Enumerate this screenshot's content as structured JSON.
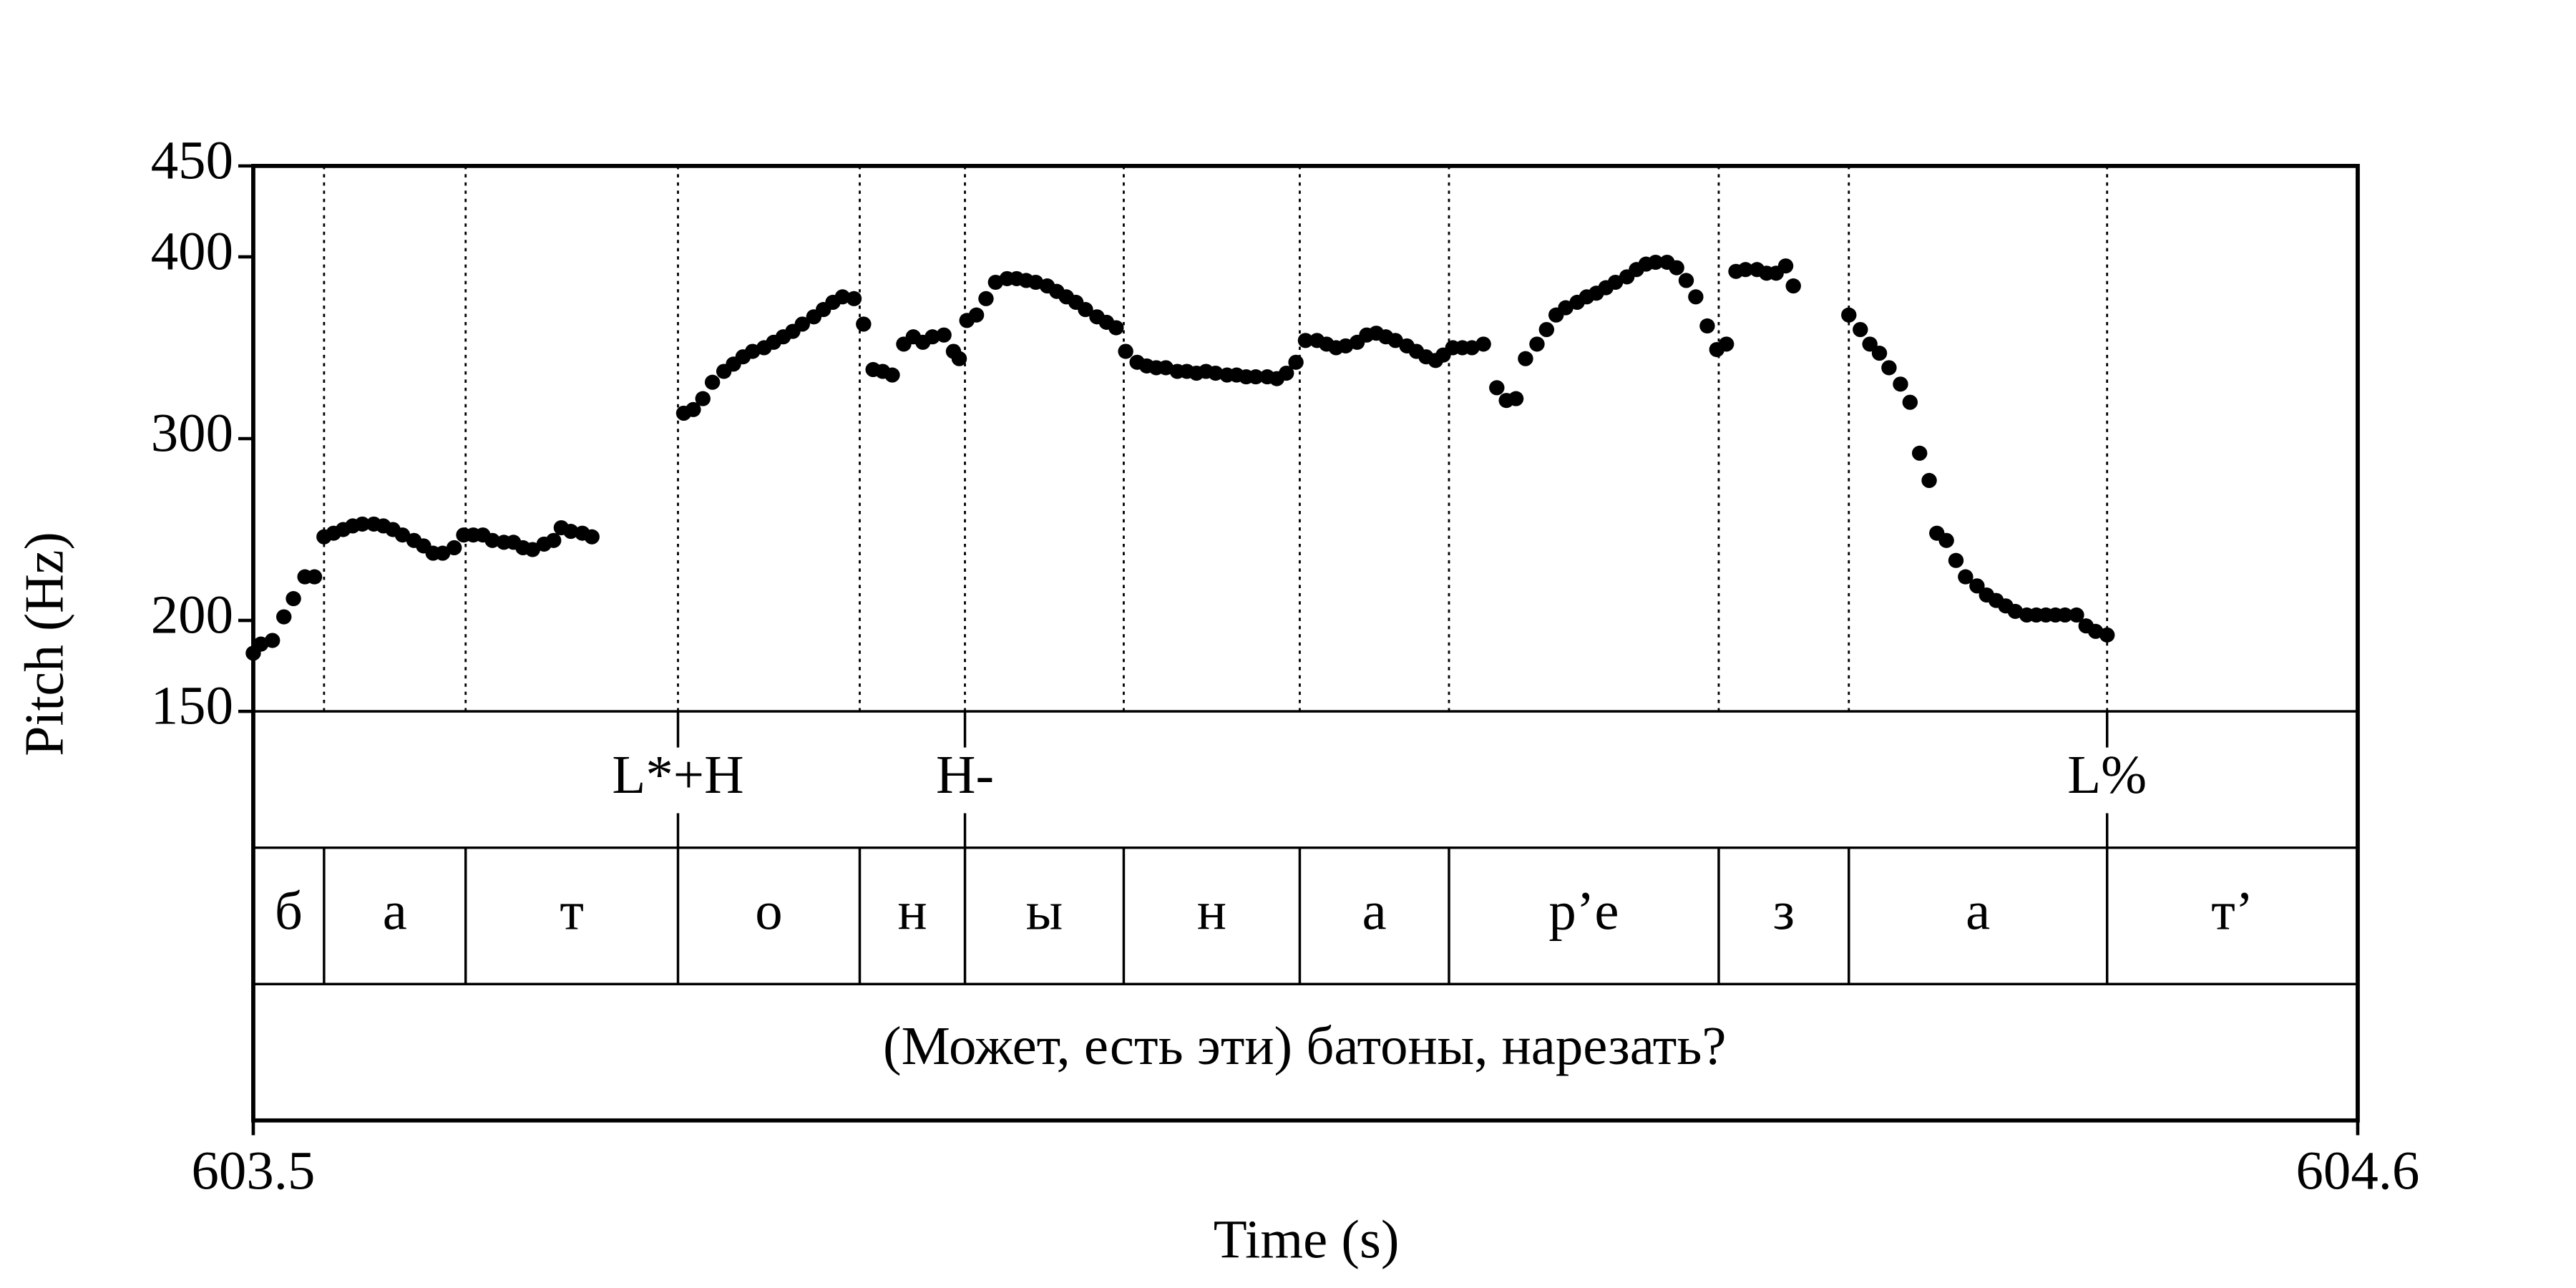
{
  "chart_data": {
    "type": "scatter",
    "ylabel": "Pitch (Hz)",
    "xlabel": "Time (s)",
    "xlim": [
      603.5,
      604.6
    ],
    "xticks": [
      603.5,
      604.6
    ],
    "ylim": [
      150,
      450
    ],
    "yticks": [
      150,
      200,
      300,
      400,
      450
    ],
    "color": "#000000",
    "x": [
      603.5,
      603.504,
      603.51,
      603.516,
      603.521,
      603.527,
      603.532,
      603.537,
      603.542,
      603.547,
      603.552,
      603.557,
      603.563,
      603.568,
      603.573,
      603.578,
      603.584,
      603.589,
      603.594,
      603.599,
      603.605,
      603.61,
      603.615,
      603.62,
      603.625,
      603.631,
      603.636,
      603.641,
      603.646,
      603.652,
      603.657,
      603.661,
      603.666,
      603.672,
      603.677,
      603.725,
      603.73,
      603.735,
      603.74,
      603.746,
      603.751,
      603.756,
      603.761,
      603.767,
      603.772,
      603.777,
      603.782,
      603.787,
      603.793,
      603.798,
      603.803,
      603.808,
      603.814,
      603.819,
      603.824,
      603.829,
      603.834,
      603.84,
      603.845,
      603.85,
      603.855,
      603.861,
      603.866,
      603.869,
      603.873,
      603.878,
      603.883,
      603.888,
      603.894,
      603.899,
      603.904,
      603.909,
      603.915,
      603.92,
      603.925,
      603.93,
      603.935,
      603.941,
      603.946,
      603.951,
      603.956,
      603.962,
      603.967,
      603.972,
      603.977,
      603.983,
      603.988,
      603.993,
      603.998,
      604.003,
      604.009,
      604.014,
      604.019,
      604.024,
      604.03,
      604.035,
      604.04,
      604.045,
      604.05,
      604.056,
      604.061,
      604.066,
      604.071,
      604.077,
      604.082,
      604.087,
      604.092,
      604.097,
      604.103,
      604.108,
      604.113,
      604.118,
      604.122,
      604.127,
      604.132,
      604.137,
      604.143,
      604.15,
      604.155,
      604.16,
      604.165,
      604.171,
      604.176,
      604.181,
      604.186,
      604.192,
      604.197,
      604.202,
      604.207,
      604.212,
      604.218,
      604.223,
      604.228,
      604.233,
      604.239,
      604.244,
      604.249,
      604.254,
      604.26,
      604.265,
      604.27,
      604.275,
      604.28,
      604.286,
      604.291,
      604.296,
      604.301,
      604.305,
      604.334,
      604.34,
      604.345,
      604.35,
      604.355,
      604.361,
      604.366,
      604.371,
      604.376,
      604.38,
      604.385,
      604.39,
      604.395,
      604.401,
      604.406,
      604.411,
      604.416,
      604.421,
      604.427,
      604.432,
      604.437,
      604.442,
      604.447,
      604.453,
      604.458,
      604.463,
      604.469
    ],
    "values": [
      182,
      187,
      189,
      202,
      212,
      224,
      224,
      246,
      248,
      250,
      252,
      253,
      253,
      252,
      250,
      247,
      244,
      241,
      237,
      237,
      240,
      247,
      247,
      247,
      244,
      243,
      243,
      240,
      239,
      242,
      244,
      251,
      249,
      248,
      246,
      314,
      316,
      322,
      331,
      337,
      341,
      345,
      348,
      350,
      353,
      356,
      359,
      363,
      367,
      371,
      375,
      378,
      377,
      363,
      338,
      337,
      335,
      352,
      356,
      353,
      356,
      357,
      348,
      344,
      365,
      368,
      377,
      386,
      388,
      388,
      387,
      386,
      384,
      381,
      378,
      375,
      371,
      367,
      364,
      361,
      348,
      342,
      340,
      339,
      339,
      337,
      337,
      336,
      337,
      336,
      335,
      335,
      334,
      334,
      334,
      333,
      336,
      342,
      354,
      354,
      352,
      350,
      351,
      353,
      357,
      358,
      356,
      354,
      351,
      348,
      345,
      343,
      346,
      350,
      350,
      350,
      352,
      328,
      321,
      322,
      344,
      352,
      360,
      368,
      372,
      375,
      378,
      380,
      383,
      386,
      389,
      393,
      396,
      397,
      397,
      394,
      387,
      378,
      362,
      349,
      352,
      392,
      393,
      393,
      391,
      391,
      395,
      384,
      368,
      360,
      352,
      347,
      339,
      330,
      320,
      292,
      277,
      248,
      244,
      233,
      224,
      219,
      214,
      211,
      208,
      205,
      203,
      203,
      203,
      203,
      203,
      203,
      197,
      194,
      192
    ],
    "tones": [
      {
        "time": 603.722,
        "label": "L*+H"
      },
      {
        "time": 603.872,
        "label": "H-"
      },
      {
        "time": 604.469,
        "label": "L%"
      }
    ],
    "boundaries": [
      603.537,
      603.611,
      603.722,
      603.817,
      603.872,
      603.955,
      604.047,
      604.125,
      604.266,
      604.334,
      604.469
    ],
    "phones": [
      "б",
      "а",
      "т",
      "о",
      "н",
      "ы",
      "н",
      "а",
      "р’е",
      "з",
      "а",
      "т’"
    ],
    "words": "(Может, есть эти) батоны, нарезать?"
  }
}
